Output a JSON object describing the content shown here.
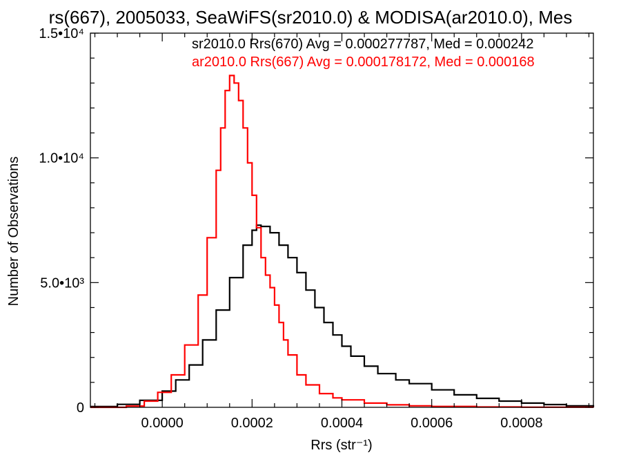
{
  "chart_data": {
    "type": "line",
    "title": "rs(667), 2005033, SeaWiFS(sr2010.0) & MODISA(ar2010.0), Mes",
    "xlabel": "Rrs (str⁻¹)",
    "ylabel": "Number of Observations",
    "xlim": [
      -0.00016,
      0.00096
    ],
    "ylim": [
      0,
      15000
    ],
    "x_ticks": [
      {
        "value": 0.0,
        "label": "0.0000"
      },
      {
        "value": 0.0002,
        "label": "0.0002"
      },
      {
        "value": 0.0004,
        "label": "0.0004"
      },
      {
        "value": 0.0006,
        "label": "0.0006"
      },
      {
        "value": 0.0008,
        "label": "0.0008"
      }
    ],
    "y_ticks": [
      {
        "value": 0,
        "label": "0"
      },
      {
        "value": 5000,
        "label": "5.0•10³"
      },
      {
        "value": 10000,
        "label": "1.0•10⁴"
      },
      {
        "value": 15000,
        "label": "1.5•10⁴"
      }
    ],
    "grid": false,
    "legend": [
      {
        "text": "sr2010.0 Rrs(670) Avg = 0.000277787, Med = 0.000242",
        "color": "#000000"
      },
      {
        "text": "ar2010.0 Rrs(667) Avg = 0.000178172, Med = 0.000168",
        "color": "#ff0000"
      }
    ],
    "series": [
      {
        "name": "sr2010.0 Rrs(670)",
        "color": "#000000",
        "step": true,
        "points": [
          [
            -0.00016,
            30
          ],
          [
            -0.0001,
            120
          ],
          [
            -5e-05,
            280
          ],
          [
            0.0,
            650
          ],
          [
            3e-05,
            1100
          ],
          [
            6e-05,
            1700
          ],
          [
            9e-05,
            2700
          ],
          [
            0.00012,
            3900
          ],
          [
            0.00015,
            5200
          ],
          [
            0.00018,
            6500
          ],
          [
            0.0002,
            7100
          ],
          [
            0.00021,
            7300
          ],
          [
            0.00022,
            7250
          ],
          [
            0.00024,
            7000
          ],
          [
            0.00026,
            6500
          ],
          [
            0.00028,
            6000
          ],
          [
            0.0003,
            5400
          ],
          [
            0.00032,
            4700
          ],
          [
            0.00034,
            4000
          ],
          [
            0.00036,
            3400
          ],
          [
            0.00038,
            2900
          ],
          [
            0.0004,
            2450
          ],
          [
            0.00042,
            2050
          ],
          [
            0.00045,
            1650
          ],
          [
            0.00048,
            1350
          ],
          [
            0.00052,
            1100
          ],
          [
            0.00055,
            950
          ],
          [
            0.0006,
            700
          ],
          [
            0.00065,
            500
          ],
          [
            0.0007,
            360
          ],
          [
            0.00075,
            250
          ],
          [
            0.0008,
            170
          ],
          [
            0.00085,
            110
          ],
          [
            0.0009,
            60
          ],
          [
            0.00096,
            20
          ]
        ]
      },
      {
        "name": "ar2010.0 Rrs(667)",
        "color": "#ff0000",
        "step": true,
        "points": [
          [
            -0.00016,
            0
          ],
          [
            -8e-05,
            50
          ],
          [
            -4e-05,
            250
          ],
          [
            -1e-05,
            600
          ],
          [
            2e-05,
            1300
          ],
          [
            5e-05,
            2500
          ],
          [
            8e-05,
            4500
          ],
          [
            0.0001,
            6800
          ],
          [
            0.00012,
            9500
          ],
          [
            0.00013,
            11200
          ],
          [
            0.00014,
            12700
          ],
          [
            0.00015,
            13300
          ],
          [
            0.00016,
            13000
          ],
          [
            0.00017,
            12300
          ],
          [
            0.00018,
            11200
          ],
          [
            0.00019,
            9800
          ],
          [
            0.0002,
            8500
          ],
          [
            0.00021,
            7200
          ],
          [
            0.00022,
            6000
          ],
          [
            0.00023,
            5300
          ],
          [
            0.00024,
            4800
          ],
          [
            0.00025,
            4100
          ],
          [
            0.00026,
            3400
          ],
          [
            0.00027,
            2700
          ],
          [
            0.00028,
            2100
          ],
          [
            0.0003,
            1300
          ],
          [
            0.00032,
            900
          ],
          [
            0.00035,
            550
          ],
          [
            0.00038,
            380
          ],
          [
            0.0004,
            300
          ],
          [
            0.00045,
            170
          ],
          [
            0.0005,
            100
          ],
          [
            0.00055,
            60
          ],
          [
            0.0006,
            35
          ],
          [
            0.0007,
            15
          ],
          [
            0.0008,
            5
          ],
          [
            0.00096,
            0
          ]
        ]
      }
    ]
  }
}
